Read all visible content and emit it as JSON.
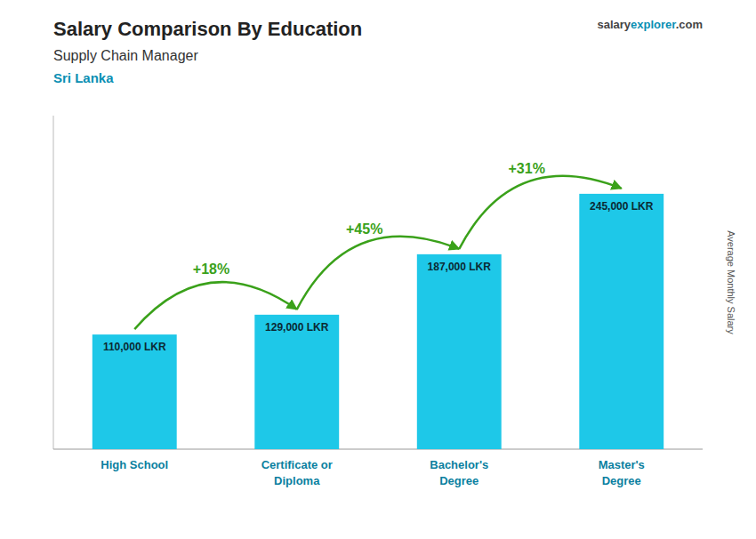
{
  "chart_data": {
    "type": "bar",
    "title": "Salary Comparison By Education",
    "subtitle": "Supply Chain Manager",
    "country": "Sri Lanka",
    "watermark": [
      "salary",
      "explorer",
      ".com"
    ],
    "ylabel": "Average Monthly Salary",
    "categories": [
      "High School",
      "Certificate or\nDiploma",
      "Bachelor's\nDegree",
      "Master's\nDegree"
    ],
    "values": [
      110000,
      129000,
      187000,
      245000
    ],
    "value_labels": [
      "110,000 LKR",
      "129,000 LKR",
      "187,000 LKR",
      "245,000 LKR"
    ],
    "annotations": [
      "+18%",
      "+45%",
      "+31%"
    ],
    "color": "#1ec8e8",
    "ylim": [
      0,
      320000
    ],
    "yticks": [],
    "tick_labels": "x",
    "data_labels": true,
    "grid": false
  }
}
